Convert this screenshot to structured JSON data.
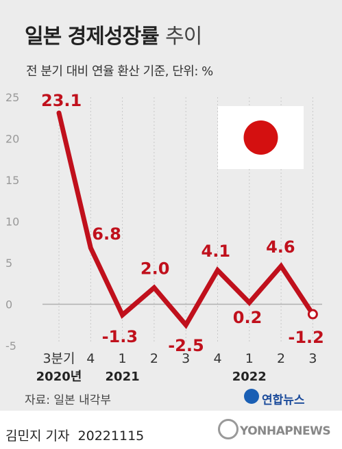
{
  "header": {
    "title_bold": "일본 경제성장률",
    "title_light": "추이",
    "subtitle": "전 분기 대비 연율 환산 기준, 단위: %"
  },
  "chart_data": {
    "type": "line",
    "title": "일본 경제성장률 추이",
    "subtitle": "전 분기 대비 연율 환산 기준, 단위: %",
    "categories": [
      "3분기",
      "4",
      "1",
      "2",
      "3",
      "4",
      "1",
      "2",
      "3"
    ],
    "year_labels": [
      {
        "label": "2020년",
        "index": 0
      },
      {
        "label": "2021",
        "index": 2
      },
      {
        "label": "2022",
        "index": 6
      }
    ],
    "values": [
      23.1,
      6.8,
      -1.3,
      2.0,
      -2.5,
      4.1,
      0.2,
      4.6,
      -1.2
    ],
    "data_labels": [
      "23.1",
      "6.8",
      "-1.3",
      "2.0",
      "-2.5",
      "4.1",
      "0.2",
      "4.6",
      "-1.2"
    ],
    "yticks": [
      25,
      20,
      15,
      10,
      5,
      0,
      -5
    ],
    "ylim": [
      -5,
      25
    ],
    "grid": false,
    "line_color": "#c0101c",
    "axis_color": "#999999"
  },
  "source": "자료: 일본 내각부",
  "logo": "연합뉴스",
  "footer": {
    "author": "김민지 기자",
    "date": "20221115",
    "brand": "YONHAPNEWS"
  },
  "flag": {
    "country": "Japan",
    "disc_color": "#d41010"
  }
}
